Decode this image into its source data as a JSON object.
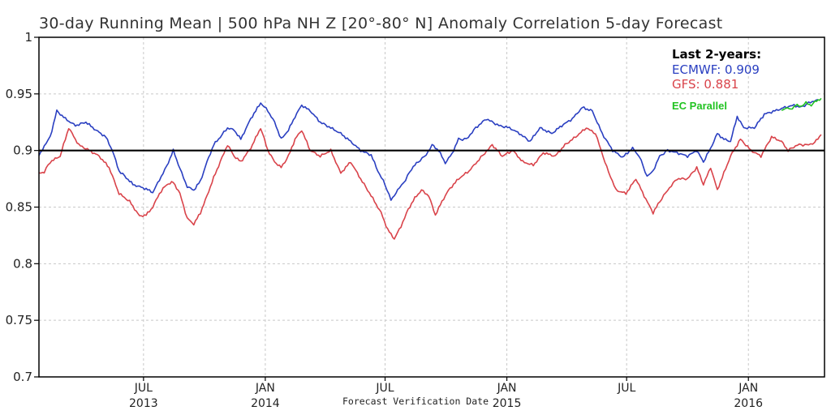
{
  "chart_data": {
    "type": "line",
    "title": "30-day Running Mean | 500 hPa NH Z [20°-80° N] Anomaly Correlation 5-day Forecast",
    "xlabel": "Forecast Verification Date",
    "ylabel": "",
    "ylim": [
      0.7,
      1.0
    ],
    "xlim": [
      "2013-01-24",
      "2016-04-25"
    ],
    "y_ticks": [
      "0.7",
      "0.75",
      "0.8",
      "0.85",
      "0.9",
      "0.95",
      "1"
    ],
    "x_ticks": [
      {
        "month": "JUL",
        "year": "2013",
        "date": "2013-07-01"
      },
      {
        "month": "JAN",
        "year": "2014",
        "date": "2014-01-01"
      },
      {
        "month": "JUL",
        "year": "",
        "date": "2014-07-01"
      },
      {
        "month": "JAN",
        "year": "2015",
        "date": "2015-01-01"
      },
      {
        "month": "JUL",
        "year": "",
        "date": "2015-07-01"
      },
      {
        "month": "JAN",
        "year": "2016",
        "date": "2016-01-01"
      }
    ],
    "reference_line": 0.9,
    "grid": true,
    "legend": {
      "title": "Last 2-years:",
      "position": "top-right",
      "entries": [
        {
          "label": "ECMWF:",
          "value": "0.909",
          "color": "#2a3fc1"
        },
        {
          "label": "GFS:",
          "value": "0.881",
          "color": "#d9434a"
        }
      ],
      "annotation": {
        "text": "EC Parallel",
        "color": "#21c321"
      }
    },
    "series": [
      {
        "name": "ECMWF",
        "color": "#2a3fc1",
        "points": [
          [
            "2013-01-24",
            0.895
          ],
          [
            "2013-02-01",
            0.904
          ],
          [
            "2013-02-10",
            0.912
          ],
          [
            "2013-02-20",
            0.935
          ],
          [
            "2013-03-05",
            0.928
          ],
          [
            "2013-03-20",
            0.922
          ],
          [
            "2013-04-05",
            0.925
          ],
          [
            "2013-04-20",
            0.918
          ],
          [
            "2013-05-05",
            0.912
          ],
          [
            "2013-05-15",
            0.9
          ],
          [
            "2013-05-25",
            0.882
          ],
          [
            "2013-06-05",
            0.876
          ],
          [
            "2013-06-15",
            0.87
          ],
          [
            "2013-06-25",
            0.868
          ],
          [
            "2013-07-05",
            0.866
          ],
          [
            "2013-07-15",
            0.863
          ],
          [
            "2013-07-25",
            0.874
          ],
          [
            "2013-08-05",
            0.886
          ],
          [
            "2013-08-15",
            0.9
          ],
          [
            "2013-08-25",
            0.884
          ],
          [
            "2013-09-05",
            0.868
          ],
          [
            "2013-09-15",
            0.865
          ],
          [
            "2013-09-25",
            0.873
          ],
          [
            "2013-10-05",
            0.89
          ],
          [
            "2013-10-15",
            0.905
          ],
          [
            "2013-10-25",
            0.912
          ],
          [
            "2013-11-05",
            0.92
          ],
          [
            "2013-11-15",
            0.918
          ],
          [
            "2013-11-25",
            0.91
          ],
          [
            "2013-12-10",
            0.928
          ],
          [
            "2013-12-25",
            0.942
          ],
          [
            "2014-01-05",
            0.935
          ],
          [
            "2014-01-15",
            0.925
          ],
          [
            "2014-01-25",
            0.91
          ],
          [
            "2014-02-05",
            0.918
          ],
          [
            "2014-02-15",
            0.93
          ],
          [
            "2014-02-25",
            0.94
          ],
          [
            "2014-03-10",
            0.935
          ],
          [
            "2014-03-25",
            0.925
          ],
          [
            "2014-04-10",
            0.92
          ],
          [
            "2014-04-25",
            0.915
          ],
          [
            "2014-05-10",
            0.908
          ],
          [
            "2014-05-25",
            0.9
          ],
          [
            "2014-06-10",
            0.896
          ],
          [
            "2014-06-20",
            0.882
          ],
          [
            "2014-07-01",
            0.87
          ],
          [
            "2014-07-10",
            0.856
          ],
          [
            "2014-07-20",
            0.865
          ],
          [
            "2014-08-01",
            0.874
          ],
          [
            "2014-08-10",
            0.884
          ],
          [
            "2014-08-20",
            0.89
          ],
          [
            "2014-09-01",
            0.896
          ],
          [
            "2014-09-10",
            0.905
          ],
          [
            "2014-09-20",
            0.9
          ],
          [
            "2014-09-30",
            0.889
          ],
          [
            "2014-10-10",
            0.897
          ],
          [
            "2014-10-20",
            0.91
          ],
          [
            "2014-11-01",
            0.91
          ],
          [
            "2014-11-15",
            0.92
          ],
          [
            "2014-12-01",
            0.928
          ],
          [
            "2014-12-20",
            0.922
          ],
          [
            "2015-01-05",
            0.92
          ],
          [
            "2015-01-20",
            0.915
          ],
          [
            "2015-02-05",
            0.908
          ],
          [
            "2015-02-20",
            0.92
          ],
          [
            "2015-03-10",
            0.915
          ],
          [
            "2015-03-25",
            0.922
          ],
          [
            "2015-04-10",
            0.928
          ],
          [
            "2015-04-25",
            0.938
          ],
          [
            "2015-05-10",
            0.935
          ],
          [
            "2015-05-25",
            0.915
          ],
          [
            "2015-06-10",
            0.9
          ],
          [
            "2015-06-25",
            0.894
          ],
          [
            "2015-07-10",
            0.902
          ],
          [
            "2015-07-20",
            0.895
          ],
          [
            "2015-08-01",
            0.877
          ],
          [
            "2015-08-10",
            0.882
          ],
          [
            "2015-08-20",
            0.895
          ],
          [
            "2015-09-01",
            0.9
          ],
          [
            "2015-09-15",
            0.898
          ],
          [
            "2015-10-01",
            0.895
          ],
          [
            "2015-10-15",
            0.9
          ],
          [
            "2015-10-25",
            0.89
          ],
          [
            "2015-11-05",
            0.902
          ],
          [
            "2015-11-15",
            0.915
          ],
          [
            "2015-11-25",
            0.91
          ],
          [
            "2015-12-05",
            0.908
          ],
          [
            "2015-12-15",
            0.93
          ],
          [
            "2015-12-25",
            0.92
          ],
          [
            "2016-01-10",
            0.92
          ],
          [
            "2016-01-25",
            0.932
          ],
          [
            "2016-02-10",
            0.935
          ],
          [
            "2016-02-25",
            0.938
          ],
          [
            "2016-03-10",
            0.94
          ],
          [
            "2016-03-20",
            0.938
          ],
          [
            "2016-04-01",
            0.942
          ],
          [
            "2016-04-15",
            0.945
          ]
        ]
      },
      {
        "name": "GFS",
        "color": "#d9434a",
        "points": [
          [
            "2013-01-24",
            0.88
          ],
          [
            "2013-02-01",
            0.881
          ],
          [
            "2013-02-10",
            0.89
          ],
          [
            "2013-02-25",
            0.895
          ],
          [
            "2013-03-10",
            0.92
          ],
          [
            "2013-03-25",
            0.905
          ],
          [
            "2013-04-10",
            0.9
          ],
          [
            "2013-04-25",
            0.895
          ],
          [
            "2013-05-10",
            0.885
          ],
          [
            "2013-05-25",
            0.862
          ],
          [
            "2013-06-10",
            0.855
          ],
          [
            "2013-06-25",
            0.842
          ],
          [
            "2013-07-05",
            0.843
          ],
          [
            "2013-07-15",
            0.85
          ],
          [
            "2013-07-25",
            0.862
          ],
          [
            "2013-08-05",
            0.87
          ],
          [
            "2013-08-15",
            0.872
          ],
          [
            "2013-08-25",
            0.862
          ],
          [
            "2013-09-05",
            0.84
          ],
          [
            "2013-09-15",
            0.835
          ],
          [
            "2013-09-25",
            0.845
          ],
          [
            "2013-10-05",
            0.86
          ],
          [
            "2013-10-15",
            0.876
          ],
          [
            "2013-10-25",
            0.89
          ],
          [
            "2013-11-05",
            0.905
          ],
          [
            "2013-11-15",
            0.895
          ],
          [
            "2013-11-25",
            0.89
          ],
          [
            "2013-12-10",
            0.902
          ],
          [
            "2013-12-25",
            0.92
          ],
          [
            "2014-01-05",
            0.9
          ],
          [
            "2014-01-15",
            0.89
          ],
          [
            "2014-01-25",
            0.885
          ],
          [
            "2014-02-05",
            0.895
          ],
          [
            "2014-02-15",
            0.91
          ],
          [
            "2014-02-25",
            0.918
          ],
          [
            "2014-03-10",
            0.9
          ],
          [
            "2014-03-25",
            0.895
          ],
          [
            "2014-04-10",
            0.9
          ],
          [
            "2014-04-25",
            0.88
          ],
          [
            "2014-05-10",
            0.89
          ],
          [
            "2014-05-25",
            0.875
          ],
          [
            "2014-06-10",
            0.86
          ],
          [
            "2014-06-25",
            0.845
          ],
          [
            "2014-07-05",
            0.83
          ],
          [
            "2014-07-15",
            0.822
          ],
          [
            "2014-07-25",
            0.833
          ],
          [
            "2014-08-05",
            0.848
          ],
          [
            "2014-08-15",
            0.858
          ],
          [
            "2014-08-25",
            0.865
          ],
          [
            "2014-09-05",
            0.86
          ],
          [
            "2014-09-15",
            0.843
          ],
          [
            "2014-09-25",
            0.855
          ],
          [
            "2014-10-05",
            0.865
          ],
          [
            "2014-10-20",
            0.875
          ],
          [
            "2014-11-05",
            0.882
          ],
          [
            "2014-11-20",
            0.892
          ],
          [
            "2014-12-10",
            0.905
          ],
          [
            "2014-12-25",
            0.895
          ],
          [
            "2015-01-10",
            0.9
          ],
          [
            "2015-01-25",
            0.89
          ],
          [
            "2015-02-10",
            0.887
          ],
          [
            "2015-02-25",
            0.898
          ],
          [
            "2015-03-15",
            0.895
          ],
          [
            "2015-03-30",
            0.905
          ],
          [
            "2015-04-15",
            0.912
          ],
          [
            "2015-05-01",
            0.92
          ],
          [
            "2015-05-15",
            0.915
          ],
          [
            "2015-06-01",
            0.885
          ],
          [
            "2015-06-15",
            0.865
          ],
          [
            "2015-06-30",
            0.862
          ],
          [
            "2015-07-15",
            0.875
          ],
          [
            "2015-07-30",
            0.857
          ],
          [
            "2015-08-10",
            0.845
          ],
          [
            "2015-08-20",
            0.855
          ],
          [
            "2015-09-01",
            0.865
          ],
          [
            "2015-09-15",
            0.875
          ],
          [
            "2015-10-01",
            0.875
          ],
          [
            "2015-10-15",
            0.885
          ],
          [
            "2015-10-25",
            0.87
          ],
          [
            "2015-11-05",
            0.885
          ],
          [
            "2015-11-15",
            0.865
          ],
          [
            "2015-11-25",
            0.88
          ],
          [
            "2015-12-05",
            0.895
          ],
          [
            "2015-12-20",
            0.91
          ],
          [
            "2016-01-05",
            0.9
          ],
          [
            "2016-01-20",
            0.895
          ],
          [
            "2016-02-05",
            0.912
          ],
          [
            "2016-02-20",
            0.908
          ],
          [
            "2016-03-01",
            0.9
          ],
          [
            "2016-03-15",
            0.905
          ],
          [
            "2016-04-01",
            0.905
          ],
          [
            "2016-04-10",
            0.907
          ],
          [
            "2016-04-20",
            0.914
          ]
        ]
      },
      {
        "name": "EC Parallel",
        "color": "#21c321",
        "points": [
          [
            "2016-02-20",
            0.935
          ],
          [
            "2016-02-27",
            0.938
          ],
          [
            "2016-03-05",
            0.936
          ],
          [
            "2016-03-12",
            0.94
          ],
          [
            "2016-03-20",
            0.939
          ],
          [
            "2016-03-28",
            0.942
          ],
          [
            "2016-04-05",
            0.94
          ],
          [
            "2016-04-13",
            0.944
          ],
          [
            "2016-04-20",
            0.946
          ]
        ]
      }
    ]
  }
}
